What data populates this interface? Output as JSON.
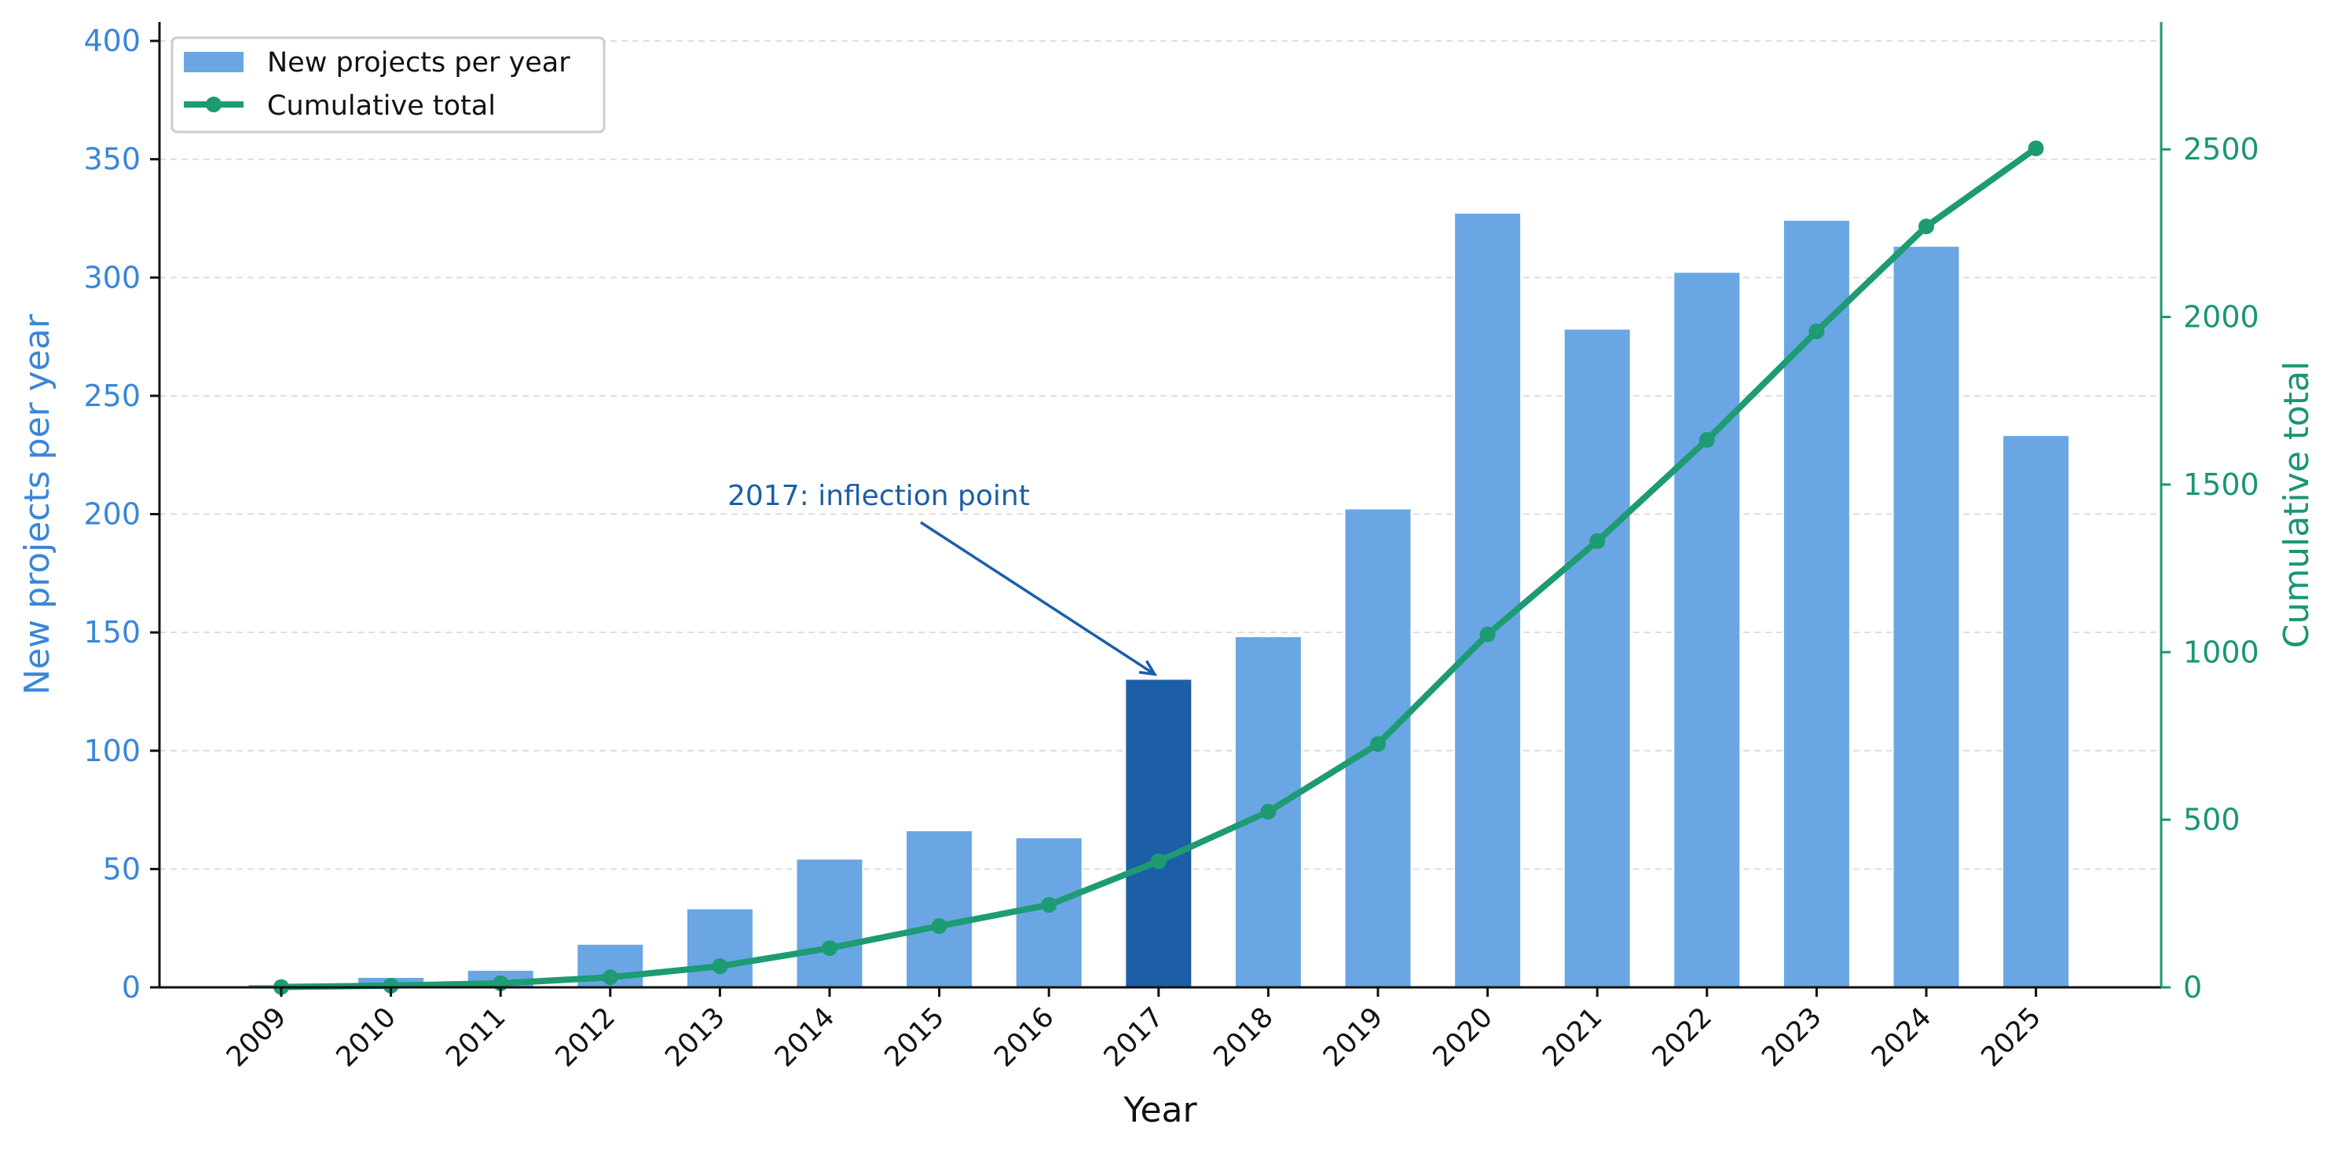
{
  "chart_data": {
    "type": "bar",
    "categories": [
      "2009",
      "2010",
      "2011",
      "2012",
      "2013",
      "2014",
      "2015",
      "2016",
      "2017",
      "2018",
      "2019",
      "2020",
      "2021",
      "2022",
      "2023",
      "2024",
      "2025"
    ],
    "series": [
      {
        "name": "New projects per year",
        "type": "bar",
        "axis": "left",
        "color": "#6aa6e3",
        "highlight_color": "#1c5fa6",
        "highlight_category": "2017",
        "values": [
          1,
          4,
          7,
          18,
          33,
          54,
          66,
          63,
          130,
          148,
          202,
          327,
          278,
          302,
          324,
          313,
          233
        ]
      },
      {
        "name": "Cumulative total",
        "type": "line",
        "axis": "right",
        "color": "#1d9b72",
        "values": [
          1,
          5,
          12,
          30,
          63,
          117,
          183,
          246,
          376,
          524,
          726,
          1053,
          1331,
          1633,
          1957,
          2270,
          2503
        ]
      }
    ],
    "xlabel": "Year",
    "ylabel": "New projects per year",
    "y2label": "Cumulative total",
    "ylim": [
      0,
      408
    ],
    "y2lim": [
      0,
      2880
    ],
    "yticks": [
      "0",
      "50",
      "100",
      "150",
      "200",
      "250",
      "300",
      "350",
      "400"
    ],
    "y2ticks": [
      "0",
      "500",
      "1000",
      "1500",
      "2000",
      "2500"
    ],
    "grid": "horizontal dashed",
    "legend_position": "top-left",
    "annotation": {
      "text": "2017: inflection point",
      "target_category": "2017"
    },
    "colors": {
      "left_axis": "#3a86d8",
      "right_axis": "#1a9673"
    }
  }
}
